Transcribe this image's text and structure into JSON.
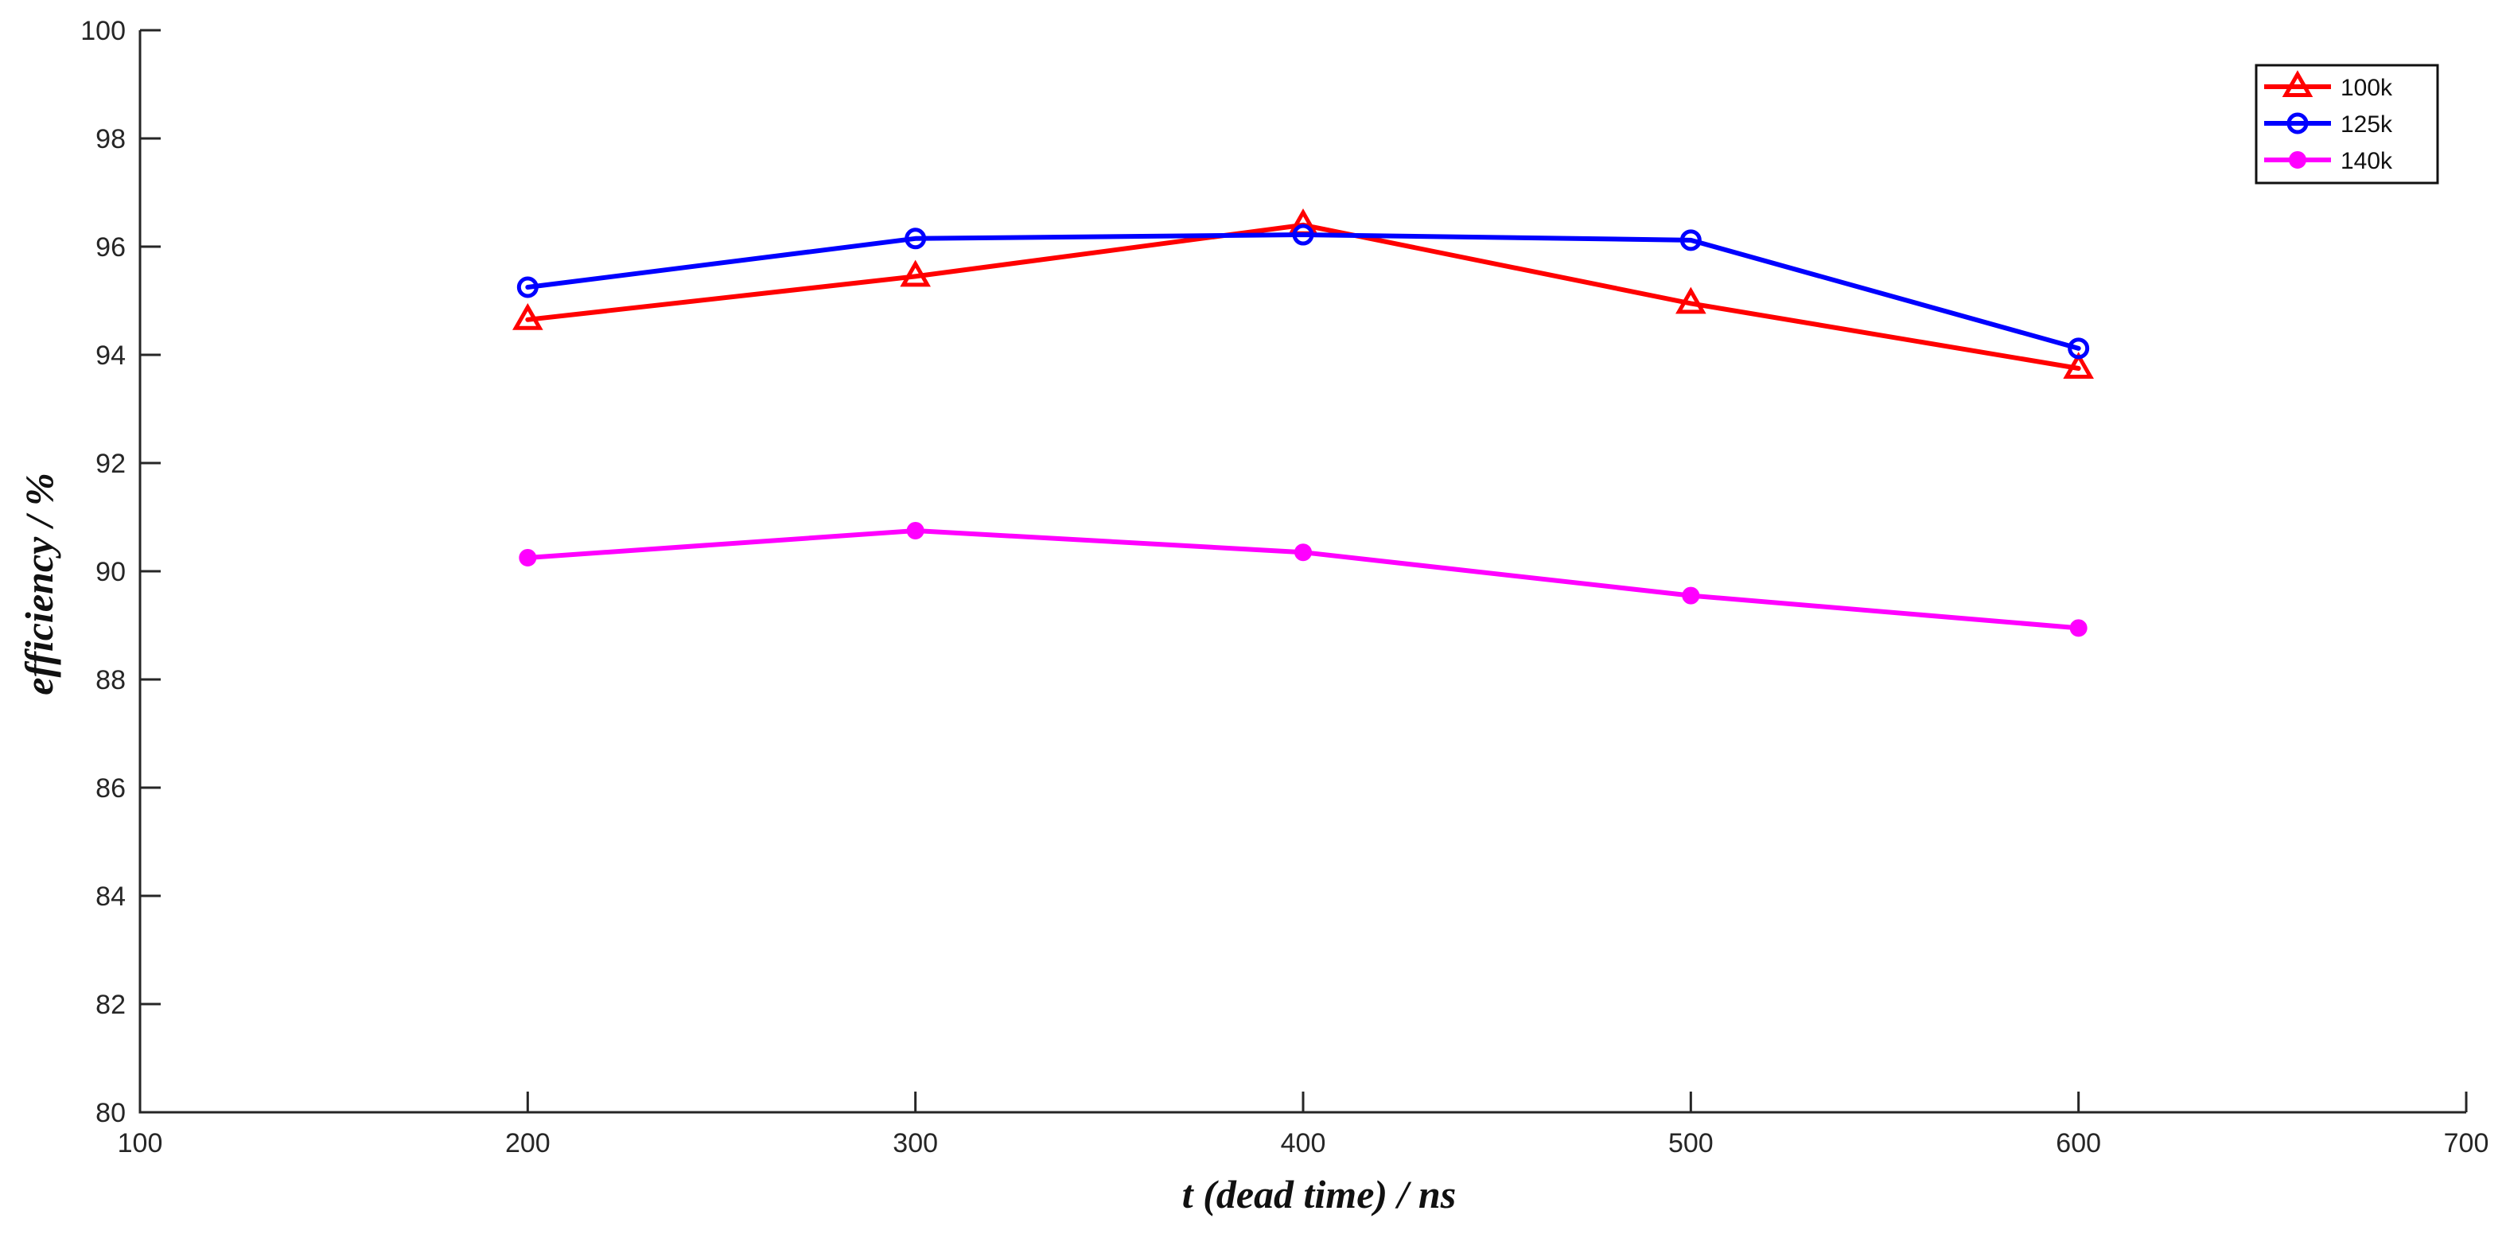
{
  "chart_data": {
    "type": "line",
    "title": "",
    "xlabel": "t (dead time) / ns",
    "ylabel": "efficiency / %",
    "xlim": [
      100,
      700
    ],
    "ylim": [
      80,
      100
    ],
    "x_ticks": [
      100,
      200,
      300,
      400,
      500,
      600,
      700
    ],
    "y_ticks": [
      80,
      82,
      84,
      86,
      88,
      90,
      92,
      94,
      96,
      98,
      100
    ],
    "grid": false,
    "legend_position": "top-right",
    "x": [
      200,
      300,
      400,
      500,
      600
    ],
    "series": [
      {
        "name": "100k",
        "color": "#ff0000",
        "marker": "triangle",
        "values": [
          94.65,
          95.45,
          96.4,
          94.95,
          93.75
        ]
      },
      {
        "name": "125k",
        "color": "#0000ff",
        "marker": "circle-open",
        "values": [
          95.25,
          96.15,
          96.22,
          96.12,
          94.12
        ]
      },
      {
        "name": "140k",
        "color": "#ff00ff",
        "marker": "circle-filled",
        "values": [
          90.25,
          90.75,
          90.35,
          89.55,
          88.95
        ]
      }
    ]
  }
}
